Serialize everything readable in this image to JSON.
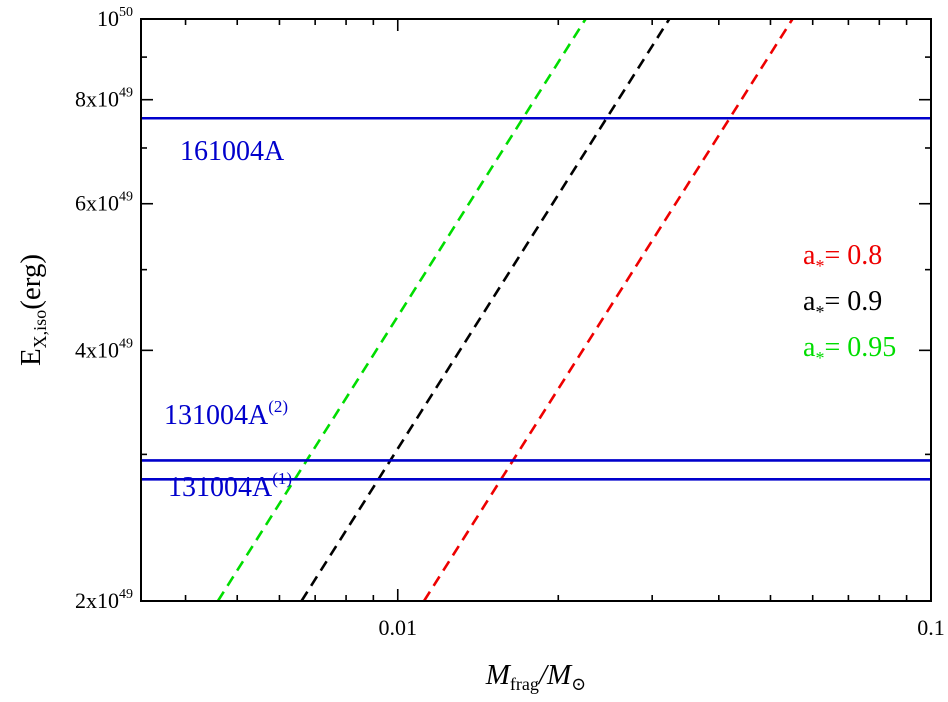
{
  "chart_data": {
    "type": "line",
    "xlabel": {
      "main": "M",
      "sub": "frag",
      "sep": "/",
      "main2": "M",
      "sub2": "⊙"
    },
    "ylabel": {
      "main": "E",
      "sub": "X,iso",
      "rest": "(erg)"
    },
    "xscale": "log",
    "yscale": "log",
    "xlim": [
      0.0033,
      0.1
    ],
    "ylim": [
      2e+49,
      1e+50
    ],
    "grid": false,
    "x_ticks": [
      {
        "value": 0.01,
        "label": "0.01"
      },
      {
        "value": 0.1,
        "label": "0.1"
      }
    ],
    "y_ticks": [
      {
        "value": 2e+49,
        "mant": "2x10",
        "exp": "49"
      },
      {
        "value": 4e+49,
        "mant": "4x10",
        "exp": "49"
      },
      {
        "value": 6e+49,
        "mant": "6x10",
        "exp": "49"
      },
      {
        "value": 8e+49,
        "mant": "8x10",
        "exp": "49"
      },
      {
        "value": 1e+50,
        "mant": "10",
        "exp": "50"
      }
    ],
    "hlines": [
      {
        "label": "161004A",
        "sup": "",
        "y": 7.6e+49,
        "color": "#0000cc"
      },
      {
        "label": "131004A",
        "sup": "(2)",
        "y": 2.95e+49,
        "color": "#0000cc"
      },
      {
        "label": "131004A",
        "sup": "(1)",
        "y": 2.8e+49,
        "color": "#0000cc"
      }
    ],
    "series": [
      {
        "name": "a* = 0.95",
        "symbol": "a",
        "sub": "*",
        "value": "= 0.95",
        "color": "#00dd00",
        "x": [
          0.0046,
          0.0225
        ],
        "y": [
          2e+49,
          1e+50
        ]
      },
      {
        "name": "a* = 0.9",
        "symbol": "a",
        "sub": "*",
        "value": "= 0.9",
        "color": "#000000",
        "x": [
          0.0066,
          0.0323
        ],
        "y": [
          2e+49,
          1e+50
        ]
      },
      {
        "name": "a* = 0.8",
        "symbol": "a",
        "sub": "*",
        "value": "= 0.8",
        "color": "#ee0000",
        "x": [
          0.0112,
          0.055
        ],
        "y": [
          2e+49,
          1e+50
        ]
      }
    ],
    "legend_order": [
      2,
      1,
      0
    ],
    "legend_placement": "right"
  }
}
